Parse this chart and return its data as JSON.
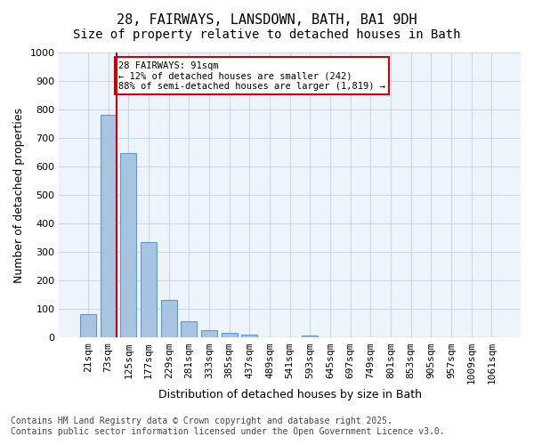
{
  "title_line1": "28, FAIRWAYS, LANSDOWN, BATH, BA1 9DH",
  "title_line2": "Size of property relative to detached houses in Bath",
  "xlabel": "Distribution of detached houses by size in Bath",
  "ylabel": "Number of detached properties",
  "footnote": "Contains HM Land Registry data © Crown copyright and database right 2025.\nContains public sector information licensed under the Open Government Licence v3.0.",
  "categories": [
    "21sqm",
    "73sqm",
    "125sqm",
    "177sqm",
    "229sqm",
    "281sqm",
    "333sqm",
    "385sqm",
    "437sqm",
    "489sqm",
    "541sqm",
    "593sqm",
    "645sqm",
    "697sqm",
    "749sqm",
    "801sqm",
    "853sqm",
    "905sqm",
    "957sqm",
    "1009sqm",
    "1061sqm"
  ],
  "values": [
    83,
    783,
    648,
    335,
    133,
    58,
    25,
    18,
    10,
    0,
    0,
    8,
    0,
    0,
    0,
    0,
    0,
    0,
    0,
    0,
    0
  ],
  "bar_color": "#a8c4e0",
  "bar_edge_color": "#5b9bd5",
  "reference_line_x": 1,
  "reference_line_color": "#cc0000",
  "annotation_text": "28 FAIRWAYS: 91sqm\n← 12% of detached houses are smaller (242)\n88% of semi-detached houses are larger (1,819) →",
  "annotation_box_color": "#cc0000",
  "ylim": [
    0,
    1000
  ],
  "yticks": [
    0,
    100,
    200,
    300,
    400,
    500,
    600,
    700,
    800,
    900,
    1000
  ],
  "grid_color": "#c8d8e8",
  "bg_color": "#eef4fb",
  "title_fontsize": 11,
  "subtitle_fontsize": 10,
  "axis_label_fontsize": 9,
  "tick_fontsize": 8,
  "footnote_fontsize": 7
}
